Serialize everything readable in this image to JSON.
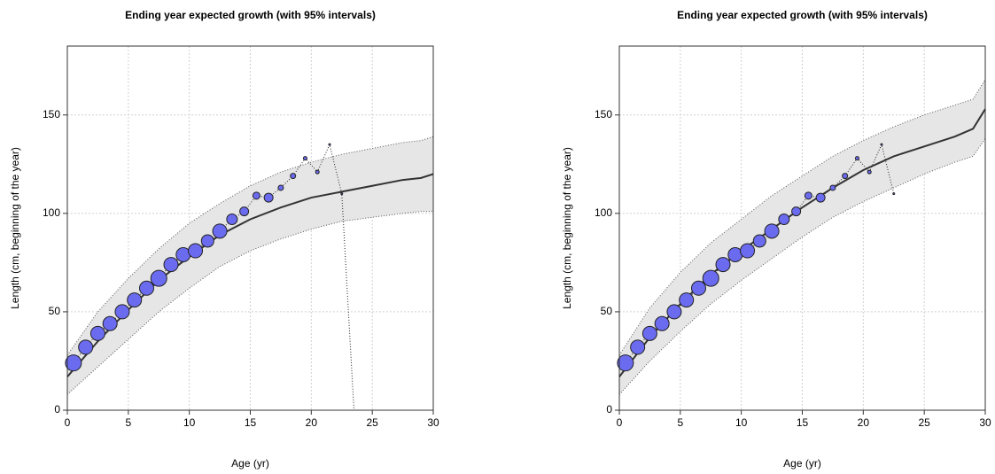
{
  "chart_data": [
    {
      "type": "line",
      "title": "Ending year expected growth (with 95% intervals)",
      "x_label": "Age (yr)",
      "y_label": "Length (cm, beginning of the year)",
      "xlim": [
        0,
        30
      ],
      "ylim": [
        0,
        185
      ],
      "xticks": [
        0,
        5,
        10,
        15,
        20,
        25,
        30
      ],
      "yticks": [
        0,
        50,
        100,
        150
      ],
      "grid": true,
      "curve": {
        "color": "#333333",
        "band_color": "#e6e6e6",
        "x": [
          0,
          2.5,
          5,
          7.5,
          10,
          12.5,
          15,
          17.5,
          20,
          22.5,
          25,
          27.5,
          29,
          30
        ],
        "values": [
          17,
          35,
          51,
          66,
          78,
          89,
          97,
          103,
          108,
          111,
          114,
          117,
          118,
          120
        ],
        "upper": [
          28,
          50,
          67,
          82,
          95,
          105,
          114,
          121,
          126,
          130,
          133,
          136,
          137,
          139
        ],
        "lower": [
          8,
          22,
          36,
          50,
          62,
          73,
          81,
          87,
          92,
          96,
          98,
          100,
          101,
          101
        ]
      },
      "points": {
        "color": "#6b6bf0",
        "x": [
          0.5,
          1.5,
          2.5,
          3.5,
          4.5,
          5.5,
          6.5,
          7.5,
          8.5,
          9.5,
          10.5,
          11.5,
          12.5,
          13.5,
          14.5,
          15.5,
          16.5,
          17.5,
          18.5,
          19.5,
          20.5,
          21.5,
          22.5,
          23.5
        ],
        "values": [
          24,
          32,
          39,
          44,
          50,
          56,
          62,
          67,
          74,
          79,
          81,
          86,
          91,
          97,
          101,
          109,
          108,
          113,
          119,
          128,
          121,
          135,
          110,
          0
        ],
        "sizes": [
          9,
          8,
          8,
          8,
          8,
          8,
          8,
          9,
          8,
          8,
          8,
          7,
          8,
          6,
          5,
          4,
          5,
          3,
          3,
          2,
          2,
          1,
          1,
          0
        ]
      }
    },
    {
      "type": "line",
      "title": "Ending year expected growth (with 95% intervals)",
      "x_label": "Age (yr)",
      "y_label": "Length (cm, beginning of the year)",
      "xlim": [
        0,
        30
      ],
      "ylim": [
        0,
        185
      ],
      "xticks": [
        0,
        5,
        10,
        15,
        20,
        25,
        30
      ],
      "yticks": [
        0,
        50,
        100,
        150
      ],
      "grid": true,
      "curve": {
        "color": "#333333",
        "band_color": "#e6e6e6",
        "x": [
          0,
          2.5,
          5,
          7.5,
          10,
          12.5,
          15,
          17.5,
          20,
          22.5,
          25,
          27.5,
          29,
          30
        ],
        "values": [
          17,
          37,
          54,
          69,
          81,
          92,
          103,
          113,
          122,
          129,
          134,
          139,
          143,
          153
        ],
        "upper": [
          28,
          52,
          70,
          85,
          97,
          109,
          119,
          129,
          137,
          144,
          150,
          155,
          158,
          168
        ],
        "lower": [
          8,
          25,
          40,
          54,
          66,
          77,
          88,
          98,
          106,
          113,
          120,
          126,
          129,
          138
        ]
      },
      "points": {
        "color": "#6b6bf0",
        "x": [
          0.5,
          1.5,
          2.5,
          3.5,
          4.5,
          5.5,
          6.5,
          7.5,
          8.5,
          9.5,
          10.5,
          11.5,
          12.5,
          13.5,
          14.5,
          15.5,
          16.5,
          17.5,
          18.5,
          19.5,
          20.5,
          21.5,
          22.5
        ],
        "values": [
          24,
          32,
          39,
          44,
          50,
          56,
          62,
          67,
          74,
          79,
          81,
          86,
          91,
          97,
          101,
          109,
          108,
          113,
          119,
          128,
          121,
          135,
          110
        ],
        "sizes": [
          9,
          8,
          8,
          8,
          8,
          8,
          8,
          9,
          8,
          8,
          8,
          7,
          8,
          6,
          5,
          4,
          5,
          3,
          3,
          2,
          2,
          1,
          1
        ]
      }
    }
  ]
}
